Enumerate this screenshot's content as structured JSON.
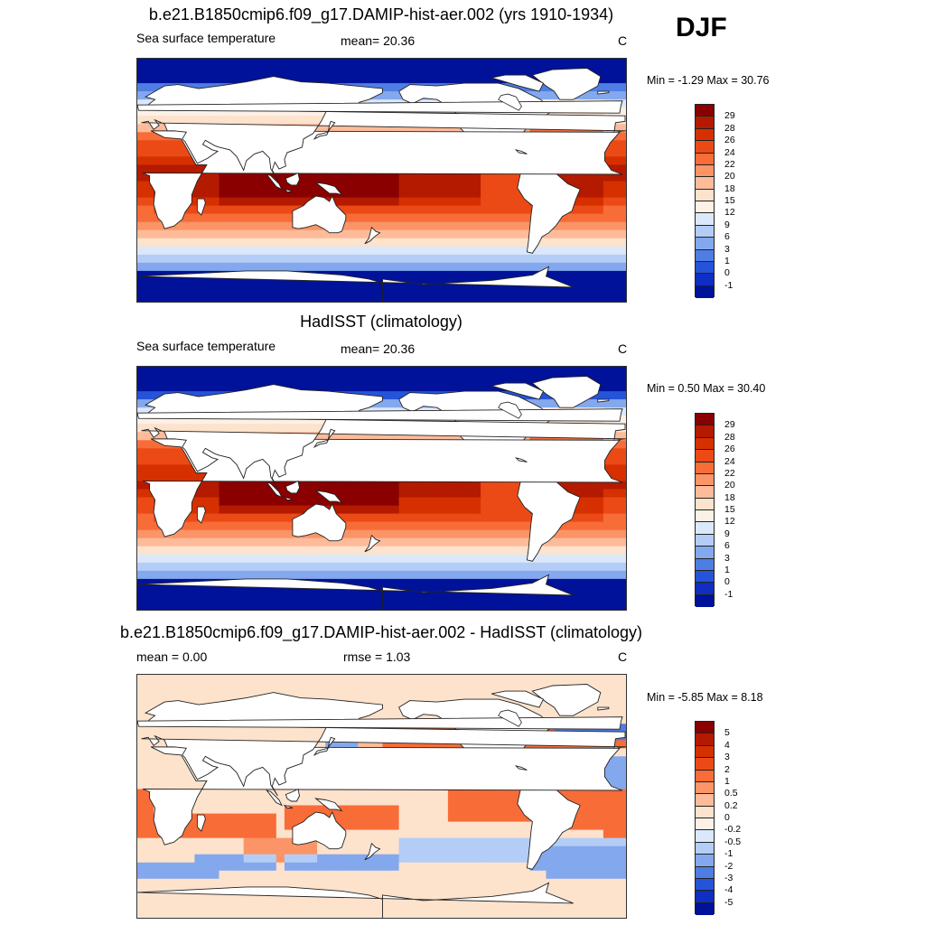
{
  "season": "DJF",
  "panels": [
    {
      "title": "b.e21.B1850cmip6.f09_g17.DAMIP-hist-aer.002 (yrs 1910-1934)",
      "left": "Sea surface temperature",
      "center": "mean=  20.36",
      "right": "C",
      "minmax": "Min =  -1.29 Max =  30.76",
      "kind": "sst",
      "levels": [
        "29",
        "28",
        "26",
        "24",
        "22",
        "20",
        "18",
        "15",
        "12",
        "9",
        "6",
        "3",
        "1",
        "0",
        "-1"
      ],
      "colors": [
        "#8a0000",
        "#b41a00",
        "#d63000",
        "#eb4a16",
        "#f86c38",
        "#fb9466",
        "#fdbb9a",
        "#fde2cc",
        "#fdf0e6",
        "#dbe8fb",
        "#b4cdf6",
        "#84a8ee",
        "#4f7de3",
        "#2654d8",
        "#0e2fc2",
        "#01129a"
      ]
    },
    {
      "title": "HadISST (climatology)",
      "left": "Sea surface temperature",
      "center": "mean=  20.36",
      "right": "C",
      "minmax": "Min =   0.50 Max =  30.40",
      "kind": "sst",
      "levels": [
        "29",
        "28",
        "26",
        "24",
        "22",
        "20",
        "18",
        "15",
        "12",
        "9",
        "6",
        "3",
        "1",
        "0",
        "-1"
      ],
      "colors": [
        "#8a0000",
        "#b41a00",
        "#d63000",
        "#eb4a16",
        "#f86c38",
        "#fb9466",
        "#fdbb9a",
        "#fde2cc",
        "#fdf0e6",
        "#dbe8fb",
        "#b4cdf6",
        "#84a8ee",
        "#4f7de3",
        "#2654d8",
        "#0e2fc2",
        "#01129a"
      ]
    },
    {
      "title": "b.e21.B1850cmip6.f09_g17.DAMIP-hist-aer.002 - HadISST (climatology)",
      "left": "mean =   0.00",
      "center": "rmse =   1.03",
      "right": "C",
      "minmax": "Min =  -5.85 Max =   8.18",
      "kind": "diff",
      "levels": [
        "5",
        "4",
        "3",
        "2",
        "1",
        "0.5",
        "0.2",
        "0",
        "-0.2",
        "-0.5",
        "-1",
        "-2",
        "-3",
        "-4",
        "-5"
      ],
      "colors": [
        "#8a0000",
        "#b41a00",
        "#d63000",
        "#eb4a16",
        "#f86c38",
        "#fb9466",
        "#fdbb9a",
        "#fde2cc",
        "#fdf0e6",
        "#dbe8fb",
        "#b4cdf6",
        "#84a8ee",
        "#4f7de3",
        "#2654d8",
        "#0e2fc2",
        "#01129a"
      ]
    }
  ]
}
